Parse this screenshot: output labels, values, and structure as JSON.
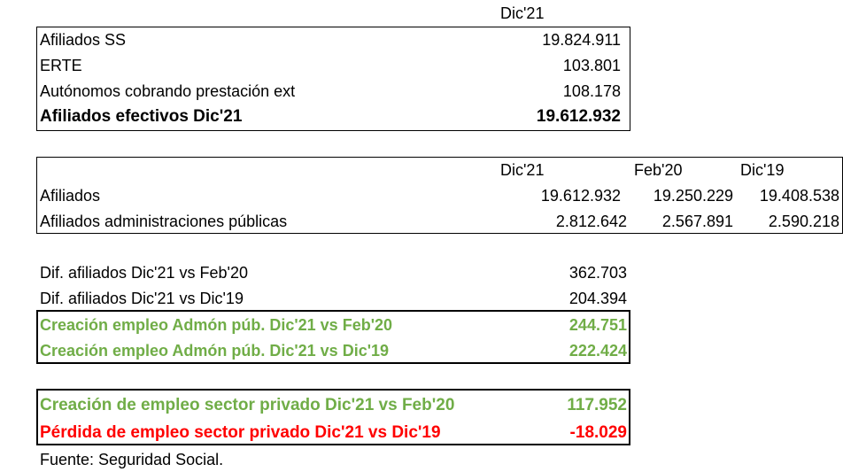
{
  "table1": {
    "header": "Dic'21",
    "rows": [
      [
        "Afiliados SS",
        "19.824.911"
      ],
      [
        "ERTE",
        "103.801"
      ],
      [
        "Autónomos cobrando prestación ext",
        "108.178"
      ],
      [
        "Afiliados efectivos Dic'21",
        "19.612.932"
      ]
    ]
  },
  "table2": {
    "headers": [
      "Dic'21",
      "Feb'20",
      "Dic'19"
    ],
    "rows": [
      [
        "Afiliados",
        "19.612.932",
        "19.250.229",
        "19.408.538"
      ],
      [
        "Afiliados administraciones públicas",
        "2.812.642",
        "2.567.891",
        "2.590.218"
      ]
    ]
  },
  "differences": {
    "rows": [
      [
        "Dif. afiliados Dic'21 vs Feb'20",
        "362.703"
      ],
      [
        "Dif. afiliados Dic'21 vs Dic'19",
        "204.394"
      ]
    ]
  },
  "public_sector": {
    "rows": [
      [
        "Creación empleo Admón púb. Dic'21 vs Feb'20",
        "244.751"
      ],
      [
        "Creación empleo Admón púb. Dic'21 vs Dic'19",
        "222.424"
      ]
    ]
  },
  "private_sector": {
    "rows": [
      [
        "Creación de empleo sector privado Dic'21 vs Feb'20",
        "117.952"
      ],
      [
        "Pérdida de empleo sector privado Dic'21 vs Dic'19",
        "-18.029"
      ]
    ]
  },
  "source": "Fuente: Seguridad Social."
}
